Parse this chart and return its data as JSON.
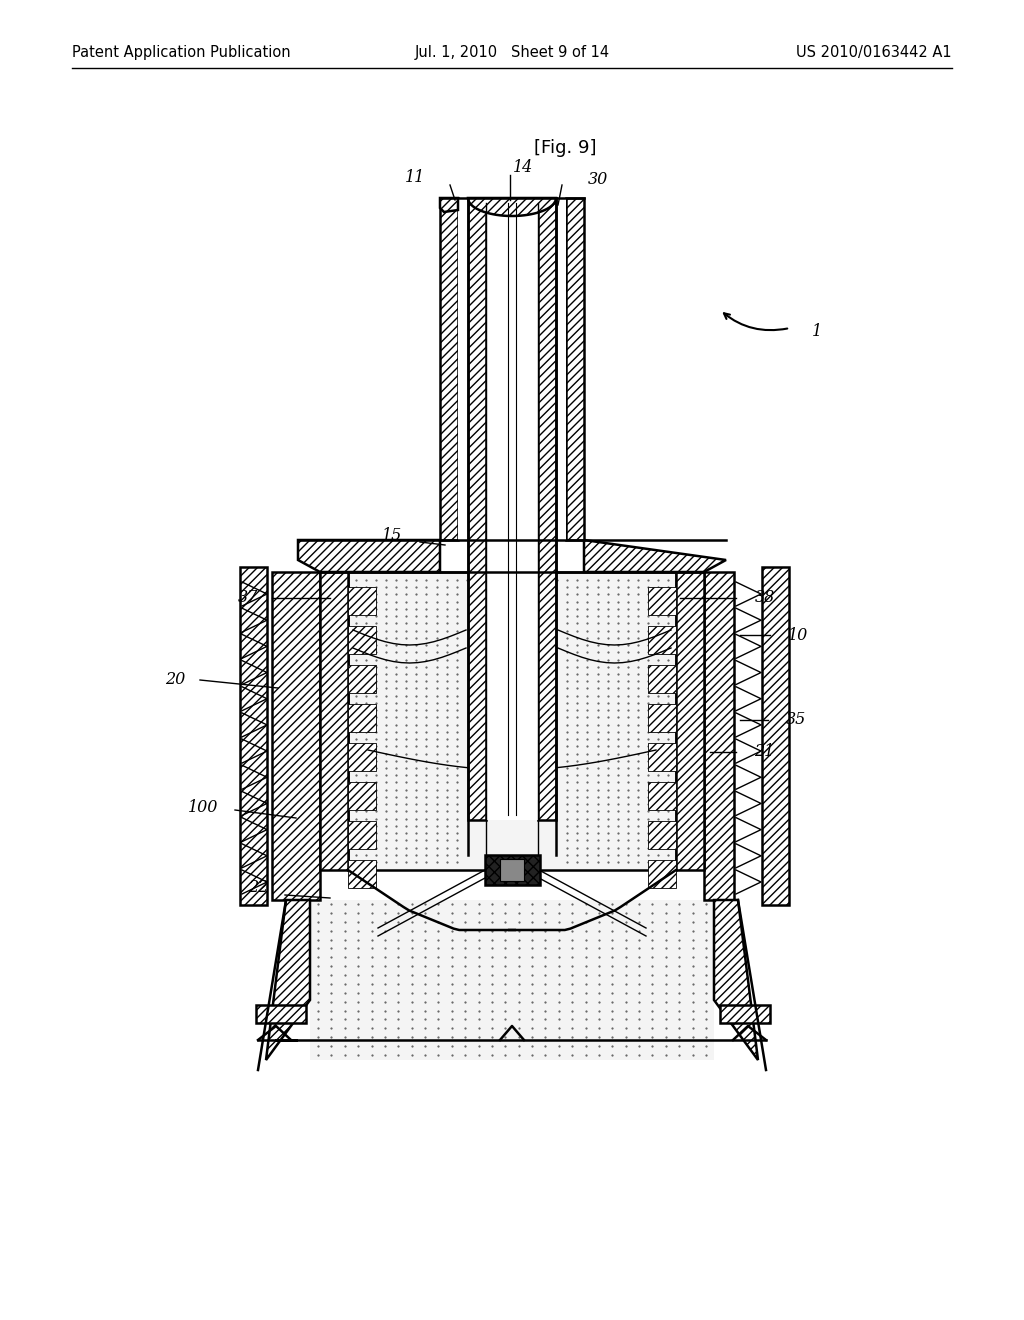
{
  "header_left": "Patent Application Publication",
  "header_center": "Jul. 1, 2010   Sheet 9 of 14",
  "header_right": "US 2010/0163442 A1",
  "fig_label": "[Fig. 9]",
  "bg_color": "#ffffff",
  "line_color": "#000000"
}
